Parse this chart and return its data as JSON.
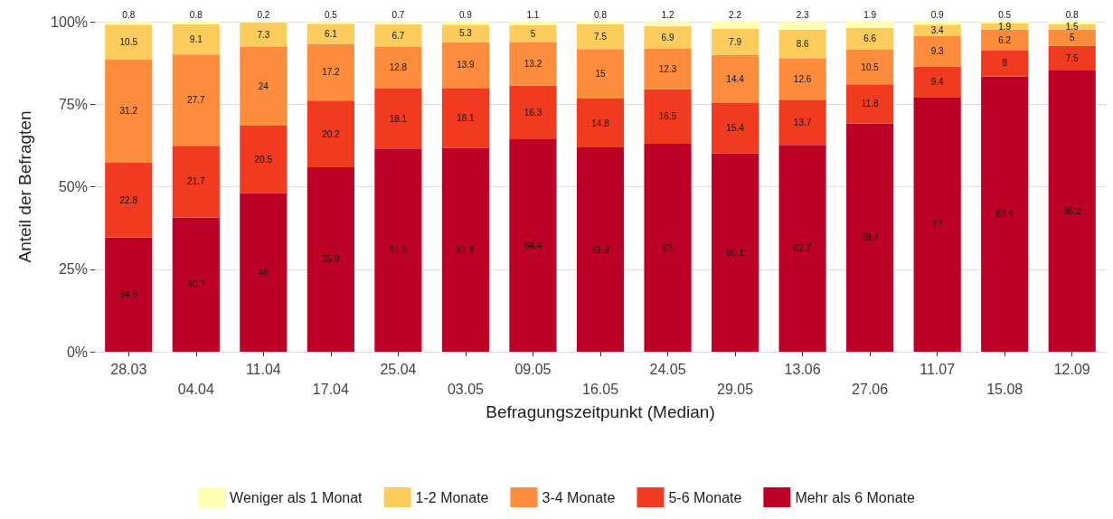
{
  "chart_data": {
    "type": "bar",
    "stacked": true,
    "xlabel": "Befragungszeitpunkt (Median)",
    "ylabel": "Anteil der Befragten",
    "categories": [
      "28.03",
      "04.04",
      "11.04",
      "17.04",
      "25.04",
      "03.05",
      "09.05",
      "16.05",
      "24.05",
      "29.05",
      "13.06",
      "27.06",
      "11.07",
      "15.08",
      "12.09"
    ],
    "series": [
      {
        "name": "Mehr als 6 Monate",
        "color": "#bd0026",
        "values": [
          34.6,
          40.7,
          48,
          55.9,
          61.6,
          61.8,
          64.4,
          61.9,
          63,
          60.1,
          62.7,
          69.2,
          77,
          83.4,
          85.2
        ]
      },
      {
        "name": "5-6 Monate",
        "color": "#f03b20",
        "values": [
          22.8,
          21.7,
          20.5,
          20.2,
          18.1,
          18.1,
          16.3,
          14.8,
          16.5,
          15.4,
          13.7,
          11.8,
          9.4,
          8,
          7.5
        ]
      },
      {
        "name": "3-4 Monate",
        "color": "#fd8d3c",
        "values": [
          31.2,
          27.7,
          24,
          17.2,
          12.8,
          13.9,
          13.2,
          15,
          12.3,
          14.4,
          12.6,
          10.5,
          9.3,
          6.2,
          5
        ]
      },
      {
        "name": "1-2 Monate",
        "color": "#fecc5c",
        "values": [
          10.5,
          9.1,
          7.3,
          6.1,
          6.7,
          5.3,
          5,
          7.5,
          6.9,
          7.9,
          8.6,
          6.6,
          3.4,
          1.9,
          1.5
        ]
      },
      {
        "name": "Weniger als 1 Monat",
        "color": "#ffffb2",
        "values": [
          0.8,
          0.8,
          0.2,
          0.5,
          0.7,
          0.9,
          1.1,
          0.8,
          1.2,
          2.2,
          2.3,
          1.9,
          0.9,
          0.5,
          0.8
        ]
      }
    ],
    "ylim": [
      0,
      100
    ],
    "yticks": [
      {
        "value": 0,
        "label": "0%"
      },
      {
        "value": 25,
        "label": "25%"
      },
      {
        "value": 50,
        "label": "50%"
      },
      {
        "value": 75,
        "label": "75%"
      },
      {
        "value": 100,
        "label": "100%"
      }
    ],
    "grid": "y",
    "legend": "bottom",
    "data_labels": true
  }
}
